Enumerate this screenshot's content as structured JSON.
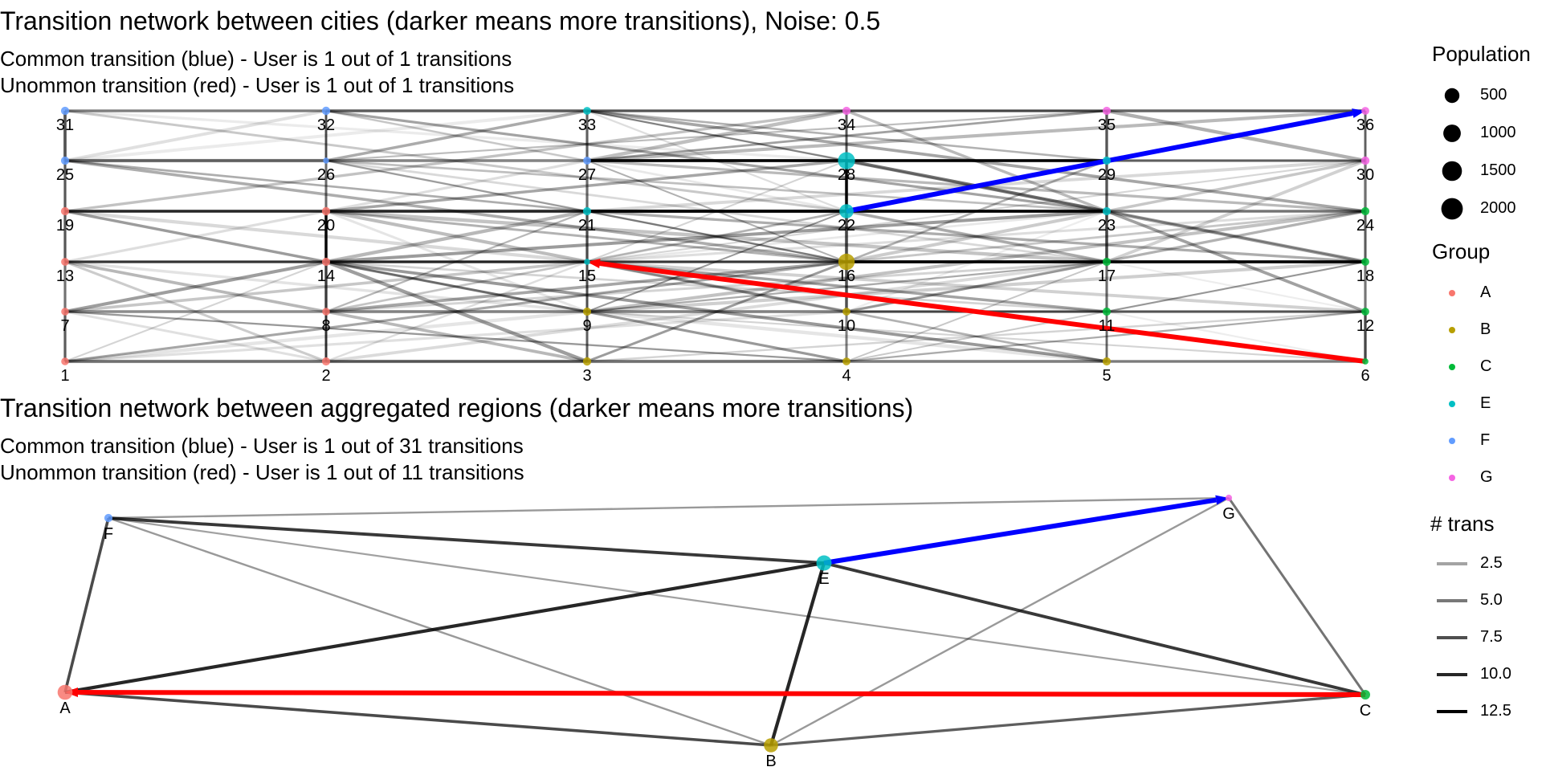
{
  "top": {
    "title": "Transition network between cities (darker means more transitions), Noise: 0.5",
    "subtitle_common": "Common transition (blue) - User is 1 out of 1 transitions",
    "subtitle_uncommon": "Unommon transition (red) - User is 1 out of 1 transitions",
    "nodes": [
      {
        "id": "1",
        "group": "A",
        "pop": 250
      },
      {
        "id": "2",
        "group": "A",
        "pop": 300
      },
      {
        "id": "3",
        "group": "B",
        "pop": 320
      },
      {
        "id": "4",
        "group": "B",
        "pop": 280
      },
      {
        "id": "5",
        "group": "B",
        "pop": 310
      },
      {
        "id": "6",
        "group": "C",
        "pop": 120
      },
      {
        "id": "7",
        "group": "A",
        "pop": 250
      },
      {
        "id": "8",
        "group": "A",
        "pop": 250
      },
      {
        "id": "9",
        "group": "B",
        "pop": 300
      },
      {
        "id": "10",
        "group": "B",
        "pop": 280
      },
      {
        "id": "11",
        "group": "C",
        "pop": 300
      },
      {
        "id": "12",
        "group": "C",
        "pop": 280
      },
      {
        "id": "13",
        "group": "A",
        "pop": 280
      },
      {
        "id": "14",
        "group": "A",
        "pop": 300
      },
      {
        "id": "15",
        "group": "E",
        "pop": 110
      },
      {
        "id": "16",
        "group": "B",
        "pop": 2000
      },
      {
        "id": "17",
        "group": "C",
        "pop": 300
      },
      {
        "id": "18",
        "group": "C",
        "pop": 280
      },
      {
        "id": "19",
        "group": "A",
        "pop": 300
      },
      {
        "id": "20",
        "group": "A",
        "pop": 320
      },
      {
        "id": "21",
        "group": "E",
        "pop": 300
      },
      {
        "id": "22",
        "group": "E",
        "pop": 1400
      },
      {
        "id": "23",
        "group": "E",
        "pop": 300
      },
      {
        "id": "24",
        "group": "C",
        "pop": 300
      },
      {
        "id": "25",
        "group": "F",
        "pop": 300
      },
      {
        "id": "26",
        "group": "F",
        "pop": 100
      },
      {
        "id": "27",
        "group": "F",
        "pop": 280
      },
      {
        "id": "28",
        "group": "E",
        "pop": 2200
      },
      {
        "id": "29",
        "group": "E",
        "pop": 300
      },
      {
        "id": "30",
        "group": "G",
        "pop": 320
      },
      {
        "id": "31",
        "group": "F",
        "pop": 300
      },
      {
        "id": "32",
        "group": "F",
        "pop": 320
      },
      {
        "id": "33",
        "group": "E",
        "pop": 280
      },
      {
        "id": "34",
        "group": "G",
        "pop": 300
      },
      {
        "id": "35",
        "group": "G",
        "pop": 300
      },
      {
        "id": "36",
        "group": "G",
        "pop": 280
      }
    ],
    "common_transition": {
      "from": "22",
      "to": "36"
    },
    "uncommon_transition": {
      "from": "6",
      "to": "15"
    }
  },
  "bottom": {
    "title": "Transition network between aggregated regions (darker means more transitions)",
    "subtitle_common": "Common transition (blue) - User is 1 out of 31 transitions",
    "subtitle_uncommon": "Unommon transition (red) - User is 1 out of 11 transitions",
    "nodes": [
      {
        "id": "A",
        "group": "A",
        "pop": 1600
      },
      {
        "id": "B",
        "group": "B",
        "pop": 1400
      },
      {
        "id": "C",
        "group": "C",
        "pop": 500
      },
      {
        "id": "E",
        "group": "E",
        "pop": 1700
      },
      {
        "id": "F",
        "group": "F",
        "pop": 300
      },
      {
        "id": "G",
        "group": "G",
        "pop": 150
      }
    ],
    "edges": [
      {
        "from": "F",
        "to": "A",
        "trans": 7
      },
      {
        "from": "F",
        "to": "E",
        "trans": 8
      },
      {
        "from": "F",
        "to": "G",
        "trans": 3
      },
      {
        "from": "F",
        "to": "B",
        "trans": 3
      },
      {
        "from": "F",
        "to": "C",
        "trans": 2.5
      },
      {
        "from": "A",
        "to": "E",
        "trans": 9
      },
      {
        "from": "A",
        "to": "B",
        "trans": 7
      },
      {
        "from": "E",
        "to": "B",
        "trans": 9
      },
      {
        "from": "E",
        "to": "C",
        "trans": 8
      },
      {
        "from": "A",
        "to": "C",
        "trans": 2.5
      },
      {
        "from": "B",
        "to": "C",
        "trans": 6
      },
      {
        "from": "B",
        "to": "G",
        "trans": 3
      },
      {
        "from": "G",
        "to": "C",
        "trans": 5
      }
    ],
    "common_transition": {
      "from": "E",
      "to": "G"
    },
    "uncommon_transition": {
      "from": "C",
      "to": "A"
    }
  },
  "legend": {
    "population_title": "Population",
    "population_items": [
      {
        "label": "500",
        "value": 500
      },
      {
        "label": "1000",
        "value": 1000
      },
      {
        "label": "1500",
        "value": 1500
      },
      {
        "label": "2000",
        "value": 2000
      }
    ],
    "group_title": "Group",
    "group_items": [
      {
        "label": "A",
        "color": "#F8766D"
      },
      {
        "label": "B",
        "color": "#B79F00"
      },
      {
        "label": "C",
        "color": "#00BA38"
      },
      {
        "label": "E",
        "color": "#00BFC4"
      },
      {
        "label": "F",
        "color": "#619CFF"
      },
      {
        "label": "G",
        "color": "#F564E3"
      }
    ],
    "trans_title": "# trans",
    "trans_items": [
      {
        "label": "2.5",
        "value": 2.5
      },
      {
        "label": "5.0",
        "value": 5.0
      },
      {
        "label": "7.5",
        "value": 7.5
      },
      {
        "label": "10.0",
        "value": 10.0
      },
      {
        "label": "12.5",
        "value": 12.5
      }
    ]
  },
  "colors": {
    "common": "#0000FF",
    "uncommon": "#FF0000",
    "edge": "#000000"
  }
}
